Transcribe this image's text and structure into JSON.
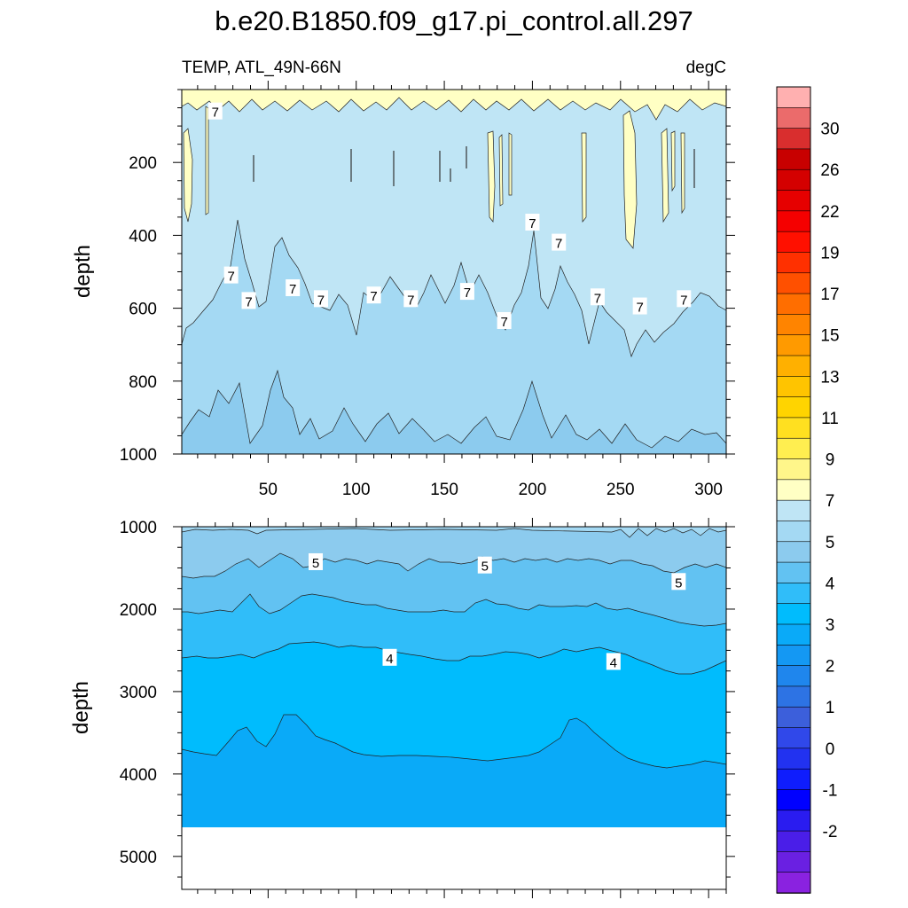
{
  "title": "b.e20.B1850.f09_g17.pi_control.all.297",
  "chart_data": [
    {
      "type": "contour",
      "panel": "upper",
      "subtitle_left": "TEMP, ATL_49N-66N",
      "subtitle_right": "degC",
      "ylabel": "depth",
      "xlabel": "",
      "xlim": [
        1,
        310
      ],
      "ylim": [
        1000,
        0
      ],
      "x_ticks": [
        50,
        100,
        150,
        200,
        250,
        300
      ],
      "y_ticks": [
        200,
        400,
        600,
        800,
        1000
      ],
      "contour_labels": [
        {
          "x": 20,
          "depth": 60,
          "text": "7"
        },
        {
          "x": 29,
          "depth": 510,
          "text": "7"
        },
        {
          "x": 39,
          "depth": 580,
          "text": "7"
        },
        {
          "x": 64,
          "depth": 545,
          "text": "7"
        },
        {
          "x": 80,
          "depth": 575,
          "text": "7"
        },
        {
          "x": 110,
          "depth": 565,
          "text": "7"
        },
        {
          "x": 131,
          "depth": 575,
          "text": "7"
        },
        {
          "x": 163,
          "depth": 555,
          "text": "7"
        },
        {
          "x": 184,
          "depth": 635,
          "text": "7"
        },
        {
          "x": 200,
          "depth": 365,
          "text": "7"
        },
        {
          "x": 215,
          "depth": 420,
          "text": "7"
        },
        {
          "x": 237,
          "depth": 570,
          "text": "7"
        },
        {
          "x": 261,
          "depth": 595,
          "text": "7"
        },
        {
          "x": 286,
          "depth": 575,
          "text": "7"
        }
      ]
    },
    {
      "type": "contour",
      "panel": "lower",
      "ylabel": "depth",
      "xlabel": "",
      "xlim": [
        1,
        310
      ],
      "ylim": [
        5400,
        1000
      ],
      "y_ticks": [
        1000,
        2000,
        3000,
        4000,
        5000
      ],
      "contour_labels": [
        {
          "x": 77,
          "depth": 1430,
          "text": "5"
        },
        {
          "x": 173,
          "depth": 1470,
          "text": "5"
        },
        {
          "x": 283,
          "depth": 1670,
          "text": "5"
        },
        {
          "x": 119,
          "depth": 2590,
          "text": "4"
        },
        {
          "x": 246,
          "depth": 2640,
          "text": "4"
        }
      ]
    }
  ],
  "colorbar": {
    "tick_labels": [
      "30",
      "26",
      "22",
      "19",
      "17",
      "15",
      "13",
      "11",
      "9",
      "7",
      "5",
      "4",
      "3",
      "2",
      "1",
      "0",
      "-1",
      "-2"
    ],
    "colors_top_to_bottom": [
      "#ffb0b0",
      "#eb6b6b",
      "#d92e2e",
      "#c80000",
      "#d40000",
      "#e60000",
      "#f50000",
      "#ff1000",
      "#ff3000",
      "#ff5000",
      "#ff6e00",
      "#ff8400",
      "#ff9a00",
      "#ffb000",
      "#ffc400",
      "#ffd400",
      "#ffe020",
      "#ffee50",
      "#fff68a",
      "#ffffc4",
      "#bfe5f5",
      "#a4d9f3",
      "#8ccbee",
      "#62c2f2",
      "#30bdf9",
      "#00bcfd",
      "#0aaaf8",
      "#1498f3",
      "#1f86ed",
      "#2d73e4",
      "#3c5fdb",
      "#3048ea",
      "#2232f0",
      "#0f1dfd",
      "#0000ff",
      "#2a1cf0",
      "#4a1ee8",
      "#6a20e2",
      "#8a22e0"
    ]
  }
}
